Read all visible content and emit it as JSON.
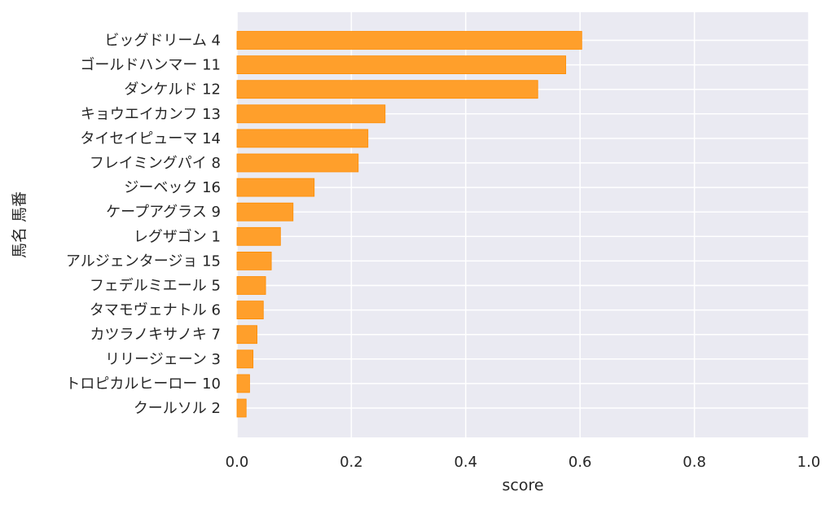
{
  "chart_data": {
    "type": "bar",
    "orientation": "horizontal",
    "categories": [
      "ビッグドリーム 4",
      "ゴールドハンマー 11",
      "ダンケルド 12",
      "キョウエイカンフ 13",
      "タイセイピューマ 14",
      "フレイミングパイ 8",
      "ジーベック 16",
      "ケープアグラス 9",
      "レグザゴン 1",
      "アルジェンタージョ 15",
      "フェデルミエール 5",
      "タマモヴェナトル 6",
      "カツラノキサノキ 7",
      "リリージェーン 3",
      "トロピカルヒーロー 10",
      "クールソル 2"
    ],
    "values": [
      0.603,
      0.575,
      0.526,
      0.259,
      0.229,
      0.212,
      0.135,
      0.098,
      0.076,
      0.06,
      0.05,
      0.046,
      0.035,
      0.028,
      0.022,
      0.016
    ],
    "xlabel": "score",
    "ylabel": "馬名 馬番",
    "xlim": [
      0,
      1.0
    ],
    "xticks": [
      "0.0",
      "0.2",
      "0.4",
      "0.6",
      "0.8",
      "1.0"
    ],
    "grid": true,
    "bar_color": "#ff9f2b",
    "bar_edge_color": "#ff8c00",
    "plot_background": "#eaeaf2",
    "grid_color": "#ffffff"
  }
}
